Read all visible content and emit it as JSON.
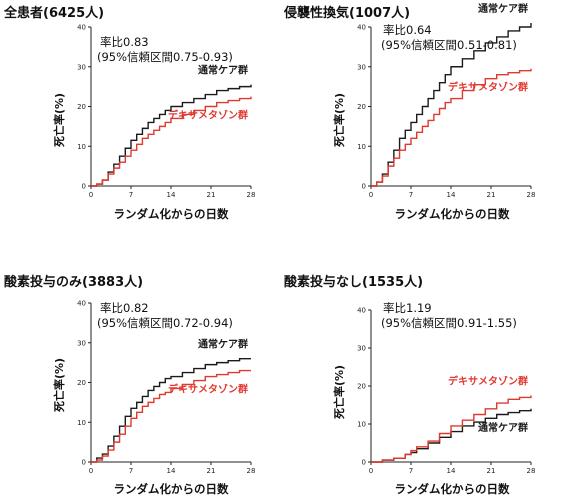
{
  "colors": {
    "usual_care": "#1a1a1a",
    "dexamethasone": "#e0392f"
  },
  "chart_data": [
    {
      "type": "line",
      "title": "全患者(6425人)",
      "rate_ratio": "率比0.83",
      "ci": "(95%信頼区間0.75-0.93)",
      "ylabel": "死亡率(%)",
      "xlabel": "ランダム化からの日数",
      "xlim": [
        0,
        28
      ],
      "ylim": [
        0,
        40
      ],
      "xticks": [
        0,
        7,
        14,
        21,
        28
      ],
      "yticks": [
        0,
        10,
        20,
        30,
        40
      ],
      "series": [
        {
          "name": "通常ケア群",
          "color": "usual_care",
          "x": [
            0,
            1,
            2,
            3,
            4,
            5,
            6,
            7,
            8,
            9,
            10,
            11,
            12,
            13,
            14,
            16,
            18,
            20,
            22,
            24,
            26,
            28
          ],
          "y": [
            0,
            0.5,
            1.5,
            3.5,
            5.5,
            7.5,
            9.5,
            11.5,
            13,
            14.5,
            16,
            17,
            18,
            19,
            20,
            21,
            22,
            23,
            24,
            24.5,
            25,
            25.5
          ]
        },
        {
          "name": "デキサメタゾン群",
          "color": "dexamethasone",
          "x": [
            0,
            1,
            2,
            3,
            4,
            5,
            6,
            7,
            8,
            9,
            10,
            11,
            12,
            13,
            14,
            16,
            18,
            20,
            22,
            24,
            26,
            28
          ],
          "y": [
            0,
            0.5,
            1.5,
            3,
            4.5,
            6,
            7.5,
            9,
            10.5,
            12,
            13,
            14,
            15,
            16,
            17,
            18,
            19,
            20,
            21,
            21.5,
            22,
            22.5
          ]
        }
      ],
      "label_positions": [
        "upper",
        "lower"
      ]
    },
    {
      "type": "line",
      "title": "侵襲性換気(1007人)",
      "rate_ratio": "率比0.64",
      "ci": "(95%信頼区間0.51-0.81)",
      "ylabel": "死亡率(%)",
      "xlabel": "ランダム化からの日数",
      "xlim": [
        0,
        28
      ],
      "ylim": [
        0,
        40
      ],
      "xticks": [
        0,
        7,
        14,
        21,
        28
      ],
      "yticks": [
        0,
        10,
        20,
        30,
        40
      ],
      "series": [
        {
          "name": "通常ケア群",
          "color": "usual_care",
          "x": [
            0,
            1,
            2,
            3,
            4,
            5,
            6,
            7,
            8,
            9,
            10,
            11,
            12,
            13,
            14,
            16,
            18,
            20,
            22,
            24,
            26,
            28
          ],
          "y": [
            0,
            1,
            3,
            6,
            9,
            12,
            14,
            16,
            18,
            20,
            22,
            24,
            26,
            28,
            30,
            32,
            34,
            36,
            37.5,
            39,
            40,
            41
          ]
        },
        {
          "name": "デキサメタゾン群",
          "color": "dexamethasone",
          "x": [
            0,
            1,
            2,
            3,
            4,
            5,
            6,
            7,
            8,
            9,
            10,
            11,
            12,
            13,
            14,
            16,
            18,
            20,
            22,
            24,
            26,
            28
          ],
          "y": [
            0,
            1,
            2.5,
            5,
            7,
            9,
            10.5,
            12,
            13.5,
            15,
            16.5,
            18,
            19.5,
            21,
            22,
            24,
            25.5,
            27,
            28,
            28.5,
            29,
            29.5
          ]
        }
      ],
      "label_positions": [
        "upper",
        "lower"
      ]
    },
    {
      "type": "line",
      "title": "酸素投与のみ(3883人)",
      "rate_ratio": "率比0.82",
      "ci": "(95%信頼区間0.72-0.94)",
      "ylabel": "死亡率(%)",
      "xlabel": "ランダム化からの日数",
      "xlim": [
        0,
        28
      ],
      "ylim": [
        0,
        40
      ],
      "xticks": [
        0,
        7,
        14,
        21,
        28
      ],
      "yticks": [
        0,
        10,
        20,
        30,
        40
      ],
      "series": [
        {
          "name": "通常ケア群",
          "color": "usual_care",
          "x": [
            0,
            1,
            2,
            3,
            4,
            5,
            6,
            7,
            8,
            9,
            10,
            11,
            12,
            13,
            14,
            16,
            18,
            20,
            22,
            24,
            26,
            28
          ],
          "y": [
            0,
            1,
            2,
            4,
            6.5,
            9,
            11.5,
            13.5,
            15,
            16.5,
            18,
            19,
            20,
            21,
            21.5,
            22.5,
            23.5,
            24.5,
            25,
            25.5,
            26,
            26
          ]
        },
        {
          "name": "デキサメタゾン群",
          "color": "dexamethasone",
          "x": [
            0,
            1,
            2,
            3,
            4,
            5,
            6,
            7,
            8,
            9,
            10,
            11,
            12,
            13,
            14,
            16,
            18,
            20,
            22,
            24,
            26,
            28
          ],
          "y": [
            0,
            0.5,
            1.5,
            3,
            5,
            7,
            9,
            11,
            12.5,
            14,
            15,
            16,
            17,
            17.5,
            18.5,
            19.5,
            20.5,
            21.5,
            22,
            22.5,
            23,
            23
          ]
        }
      ],
      "label_positions": [
        "upper",
        "lower"
      ]
    },
    {
      "type": "line",
      "title": "酸素投与なし(1535人)",
      "rate_ratio": "率比1.19",
      "ci": "(95%信頼区間0.91-1.55)",
      "ylabel": "死亡率(%)",
      "xlabel": "ランダム化からの日数",
      "xlim": [
        0,
        28
      ],
      "ylim": [
        0,
        40
      ],
      "xticks": [
        0,
        7,
        14,
        21,
        28
      ],
      "yticks": [
        0,
        10,
        20,
        30,
        40
      ],
      "series": [
        {
          "name": "通常ケア群",
          "color": "usual_care",
          "x": [
            0,
            2,
            4,
            6,
            7,
            8,
            10,
            12,
            14,
            16,
            18,
            20,
            22,
            24,
            26,
            28
          ],
          "y": [
            0,
            0.5,
            1,
            2,
            2.5,
            3.5,
            5,
            6.5,
            8,
            9.5,
            10.5,
            11.5,
            12.5,
            13,
            13.5,
            14
          ]
        },
        {
          "name": "デキサメタゾン群",
          "color": "dexamethasone",
          "x": [
            0,
            2,
            4,
            6,
            7,
            8,
            10,
            12,
            14,
            16,
            18,
            20,
            22,
            24,
            26,
            28
          ],
          "y": [
            0,
            0.5,
            1,
            2,
            3,
            4,
            5.5,
            7.5,
            9.5,
            11,
            12.5,
            14,
            15.5,
            16.5,
            17,
            17.5
          ]
        }
      ],
      "label_positions": [
        "lower",
        "upper"
      ]
    }
  ]
}
